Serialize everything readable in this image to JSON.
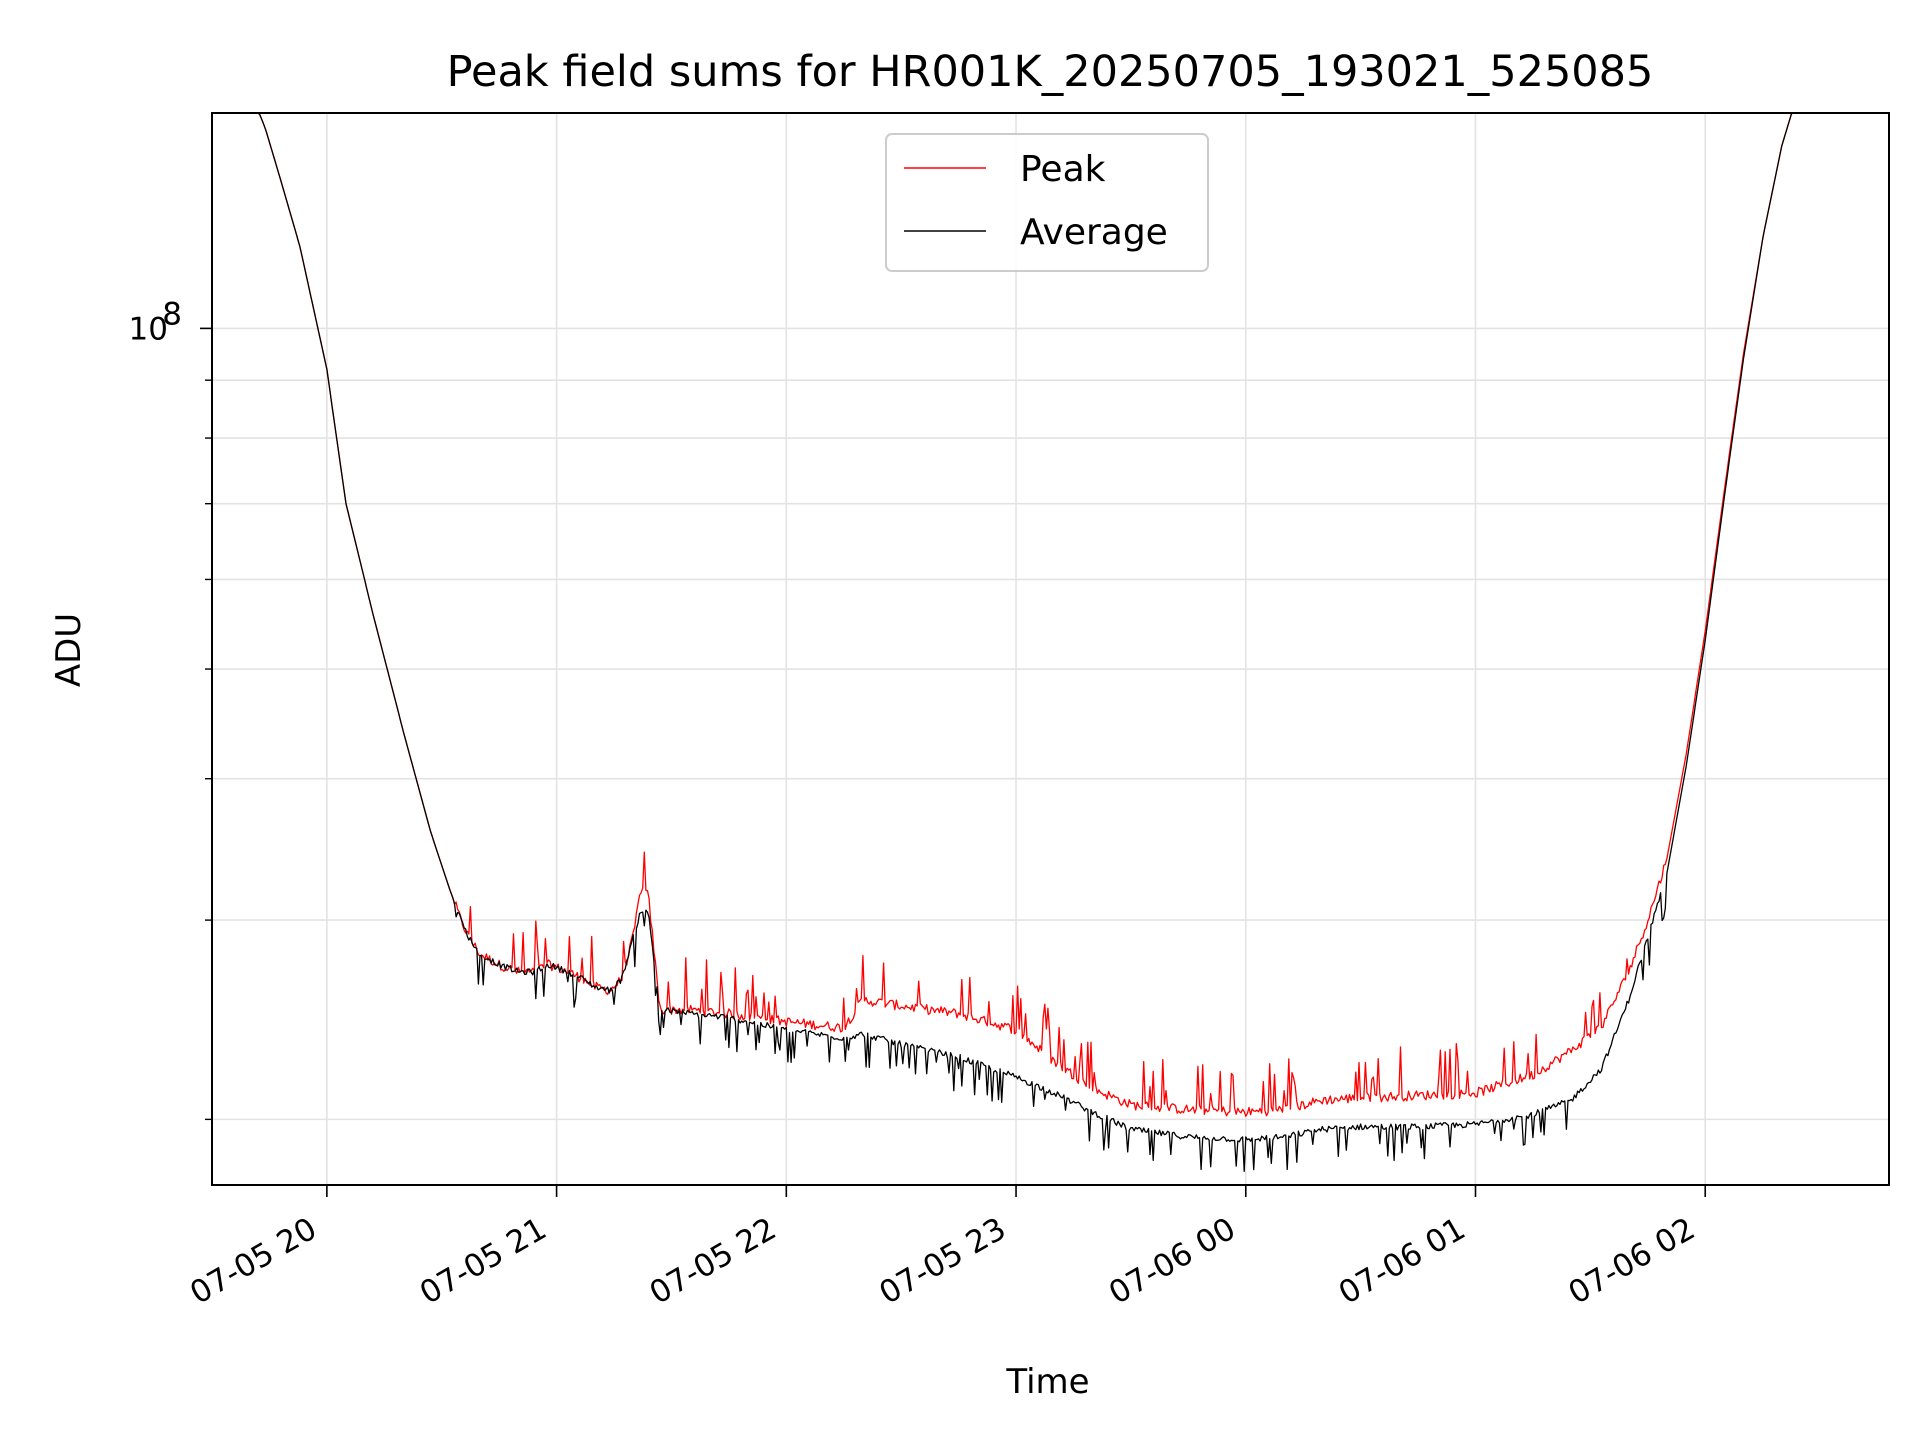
{
  "chart_data": {
    "type": "line",
    "title": "Peak field sums for HR001K_20250705_193021_525085",
    "xlabel": "Time",
    "ylabel": "ADU",
    "y_scale": "log",
    "grid": true,
    "legend_position": "top-center",
    "xlim": [
      "2025-07-05 19:30",
      "2025-07-06 02:48"
    ],
    "ylim": [
      17500000,
      155000000
    ],
    "x_ticks": [
      {
        "value": "2025-07-05 20:00",
        "label": "07-05 20"
      },
      {
        "value": "2025-07-05 21:00",
        "label": "07-05 21"
      },
      {
        "value": "2025-07-05 22:00",
        "label": "07-05 22"
      },
      {
        "value": "2025-07-05 23:00",
        "label": "07-05 23"
      },
      {
        "value": "2025-07-06 00:00",
        "label": "07-06 00"
      },
      {
        "value": "2025-07-06 01:00",
        "label": "07-06 01"
      },
      {
        "value": "2025-07-06 02:00",
        "label": "07-06 02"
      }
    ],
    "y_major_ticks": [
      {
        "value": 100000000,
        "label_base": "10",
        "label_exp": "8"
      }
    ],
    "y_minor_ticks": [
      20000000,
      30000000,
      40000000,
      50000000,
      60000000,
      70000000,
      80000000,
      90000000
    ],
    "series": [
      {
        "name": "Peak",
        "color": "#ff0000",
        "x": [
          "2025-07-05 19:30",
          "2025-07-05 19:37",
          "2025-07-05 19:40",
          "2025-07-05 19:44",
          "2025-07-05 19:48",
          "2025-07-05 19:53",
          "2025-07-05 20:00",
          "2025-07-05 20:05",
          "2025-07-05 20:12",
          "2025-07-05 20:20",
          "2025-07-05 20:27",
          "2025-07-05 20:32",
          "2025-07-05 20:35",
          "2025-07-05 20:37",
          "2025-07-05 20:40",
          "2025-07-05 20:45",
          "2025-07-05 20:50",
          "2025-07-05 20:54",
          "2025-07-05 20:58",
          "2025-07-05 21:03",
          "2025-07-05 21:07",
          "2025-07-05 21:10",
          "2025-07-05 21:14",
          "2025-07-05 21:17",
          "2025-07-05 21:20",
          "2025-07-05 21:22",
          "2025-07-05 21:24",
          "2025-07-05 21:27",
          "2025-07-05 21:35",
          "2025-07-05 21:45",
          "2025-07-05 22:00",
          "2025-07-05 22:15",
          "2025-07-05 22:20",
          "2025-07-05 22:30",
          "2025-07-05 22:45",
          "2025-07-05 23:00",
          "2025-07-05 23:10",
          "2025-07-05 23:20",
          "2025-07-05 23:30",
          "2025-07-05 23:45",
          "2025-07-06 00:00",
          "2025-07-06 00:10",
          "2025-07-06 00:20",
          "2025-07-06 00:30",
          "2025-07-06 00:45",
          "2025-07-06 01:00",
          "2025-07-06 01:15",
          "2025-07-06 01:25",
          "2025-07-06 01:33",
          "2025-07-06 01:40",
          "2025-07-06 01:45",
          "2025-07-06 01:50",
          "2025-07-06 01:55",
          "2025-07-06 02:00",
          "2025-07-06 02:05",
          "2025-07-06 02:10",
          "2025-07-06 02:15",
          "2025-07-06 02:20",
          "2025-07-06 02:25",
          "2025-07-06 02:30"
        ],
        "values": [
          165000000,
          165000000,
          162000000,
          150000000,
          135000000,
          118000000,
          92000000,
          70000000,
          56000000,
          44000000,
          36000000,
          32000000,
          30000000,
          29000000,
          28000000,
          27400000,
          27000000,
          27000000,
          27400000,
          27000000,
          26600000,
          26200000,
          26000000,
          26600000,
          29000000,
          32000000,
          31500000,
          25000000,
          25000000,
          24800000,
          24400000,
          24100000,
          25500000,
          25200000,
          24800000,
          24000000,
          22500000,
          21300000,
          20600000,
          20400000,
          20300000,
          20400000,
          20800000,
          20900000,
          21000000,
          21100000,
          21900000,
          23000000,
          24200000,
          27000000,
          30000000,
          34000000,
          42000000,
          54000000,
          72000000,
          95000000,
          120000000,
          145000000,
          165000000,
          165000000
        ],
        "y_jitter_fraction": 0.08
      },
      {
        "name": "Average",
        "color": "#000000",
        "x": [
          "2025-07-05 19:30",
          "2025-07-05 19:37",
          "2025-07-05 19:40",
          "2025-07-05 19:44",
          "2025-07-05 19:48",
          "2025-07-05 19:53",
          "2025-07-05 20:00",
          "2025-07-05 20:05",
          "2025-07-05 20:12",
          "2025-07-05 20:20",
          "2025-07-05 20:27",
          "2025-07-05 20:32",
          "2025-07-05 20:35",
          "2025-07-05 20:37",
          "2025-07-05 20:40",
          "2025-07-05 20:45",
          "2025-07-05 20:50",
          "2025-07-05 20:54",
          "2025-07-05 20:58",
          "2025-07-05 21:03",
          "2025-07-05 21:07",
          "2025-07-05 21:10",
          "2025-07-05 21:14",
          "2025-07-05 21:17",
          "2025-07-05 21:20",
          "2025-07-05 21:22",
          "2025-07-05 21:24",
          "2025-07-05 21:27",
          "2025-07-05 21:35",
          "2025-07-05 21:45",
          "2025-07-05 22:00",
          "2025-07-05 22:15",
          "2025-07-05 22:20",
          "2025-07-05 22:30",
          "2025-07-05 22:45",
          "2025-07-05 23:00",
          "2025-07-05 23:10",
          "2025-07-05 23:20",
          "2025-07-05 23:30",
          "2025-07-05 23:45",
          "2025-07-06 00:00",
          "2025-07-06 00:10",
          "2025-07-06 00:20",
          "2025-07-06 00:30",
          "2025-07-06 00:45",
          "2025-07-06 01:00",
          "2025-07-06 01:15",
          "2025-07-06 01:25",
          "2025-07-06 01:33",
          "2025-07-06 01:40",
          "2025-07-06 01:45",
          "2025-07-06 01:50",
          "2025-07-06 01:55",
          "2025-07-06 02:00",
          "2025-07-06 02:05",
          "2025-07-06 02:10",
          "2025-07-06 02:15",
          "2025-07-06 02:20",
          "2025-07-06 02:25",
          "2025-07-06 02:30"
        ],
        "values": [
          165000000,
          165000000,
          162000000,
          150000000,
          135000000,
          118000000,
          92000000,
          70000000,
          56000000,
          44000000,
          36000000,
          32000000,
          30000000,
          29000000,
          28000000,
          27400000,
          27000000,
          27000000,
          27400000,
          27000000,
          26600000,
          26200000,
          26000000,
          26600000,
          29000000,
          30600000,
          30400000,
          25000000,
          24800000,
          24600000,
          24000000,
          23600000,
          23800000,
          23300000,
          22700000,
          21800000,
          21100000,
          20300000,
          19600000,
          19300000,
          19200000,
          19300000,
          19600000,
          19700000,
          19700000,
          19800000,
          20200000,
          20800000,
          22200000,
          25500000,
          29000000,
          33000000,
          41000000,
          53000000,
          71000000,
          94000000,
          120000000,
          145000000,
          165000000,
          165000000
        ],
        "y_jitter_fraction": 0.05
      }
    ]
  }
}
